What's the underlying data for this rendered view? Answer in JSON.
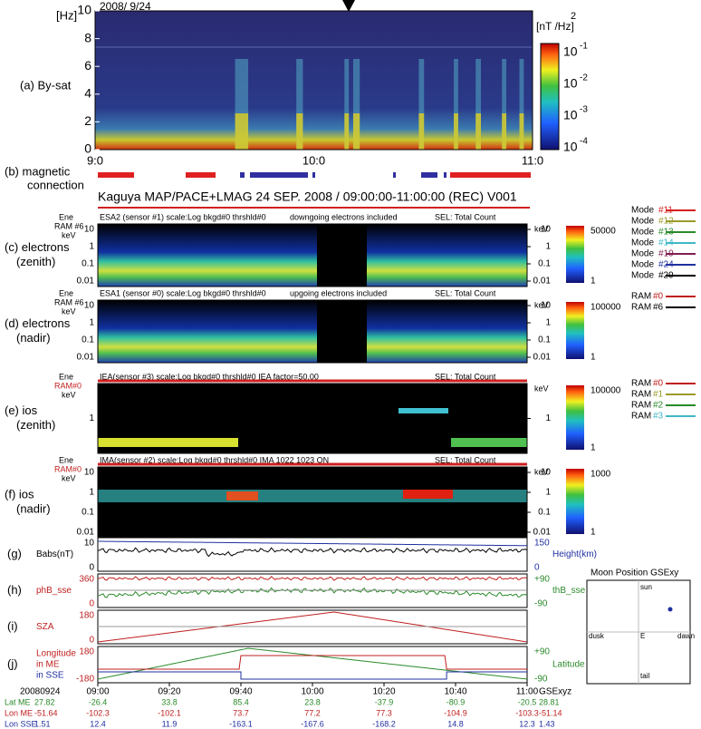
{
  "panel_a": {
    "unit": "[Hz]",
    "date": "2008/ 9/24",
    "label": "(a)  By-sat",
    "yticks": [
      "0",
      "2",
      "4",
      "6",
      "8",
      "10"
    ],
    "xticks": [
      "9:0",
      "10:0",
      "11:0"
    ],
    "cbar_unit": "[nT  /Hz]",
    "cbar_unit_sup": "2",
    "cbar_base": "10",
    "cbar_exp": [
      "-1",
      "-2",
      "-3",
      "-4"
    ]
  },
  "panel_b": {
    "label": "(b)  magnetic",
    "label2": "connection"
  },
  "title": "Kaguya  MAP/PACE+LMAG  24 SEP. 2008 / 09:00:00-11:00:00 (REC) V001",
  "spectra": [
    {
      "label": "(c) electrons",
      "sub": "(zenith)",
      "header": "ESA2 (sensor #1) scale:Log  bkgd#0  thrshld#0",
      "note": "downgoing electrons included",
      "sel": "SEL: Total Count",
      "ene": "Ene",
      "ram": "RAM #6",
      "kev": "keV",
      "ticks": [
        "10",
        "1",
        "0.1",
        "0.01"
      ],
      "cbar": [
        "50000",
        "1"
      ]
    },
    {
      "label": "(d) electrons",
      "sub": "(nadir)",
      "header": "ESA1 (sensor #0) scale:Log  bkgd#0  thrshld#0",
      "note": "upgoing electrons included",
      "sel": "SEL: Total Count",
      "ene": "Ene",
      "ram": "RAM #6",
      "kev": "keV",
      "ticks": [
        "10",
        "1",
        "0.1",
        "0.01"
      ],
      "cbar": [
        "100000",
        "1"
      ]
    },
    {
      "label": "(e) ios",
      "sub": "(zenith)",
      "header": "IEA(sensor #3) scale:Log  bkgd#0  thrshld#0  IEA factor=50.00",
      "note": "",
      "sel": "SEL: Total Count",
      "ene": "Ene",
      "ram": "RAM#0",
      "kev": "keV",
      "ticks": [
        "1"
      ],
      "cbar": [
        "100000",
        "1"
      ]
    },
    {
      "label": "(f) ios",
      "sub": "(nadir)",
      "header": "IMA(sensor #2) scale:Log  bkgd#0  thrshld#0  IMA 1022 1023 ON",
      "note": "",
      "sel": "SEL: Total Count",
      "ene": "Ene",
      "ram": "RAM#0",
      "kev": "keV",
      "ticks": [
        "10",
        "1",
        "0.1",
        "0.01"
      ],
      "cbar": [
        "1000",
        "1"
      ]
    }
  ],
  "lines": [
    {
      "label": "(g)",
      "left": [
        "Babs(nT)"
      ],
      "lticks": [
        "10",
        "0"
      ],
      "right": "Height(km)",
      "rticks": [
        "150",
        "0"
      ]
    },
    {
      "label": "(h)",
      "left": [
        "phB_sse"
      ],
      "lticks": [
        "360",
        "0"
      ],
      "right": "thB_sse",
      "rticks": [
        "+90",
        "-90"
      ]
    },
    {
      "label": "(i)",
      "left": [
        "SZA"
      ],
      "lticks": [
        "180",
        "0"
      ],
      "right": "",
      "rticks": []
    },
    {
      "label": "(j)",
      "left": [
        "Longitude",
        "in ME",
        "in SSE"
      ],
      "lticks": [
        "180",
        "-180"
      ],
      "right": "Latitude",
      "rticks": [
        "+90",
        "-90"
      ]
    }
  ],
  "modes": [
    {
      "name": "Mode",
      "id": "#11",
      "color": "#d62020"
    },
    {
      "name": "Mode",
      "id": "#12",
      "color": "#9a9a2a"
    },
    {
      "name": "Mode",
      "id": "#13",
      "color": "#2a8a2a"
    },
    {
      "name": "Mode",
      "id": "#14",
      "color": "#40b8c8"
    },
    {
      "name": "Mode",
      "id": "#19",
      "color": "#802050"
    },
    {
      "name": "Mode",
      "id": "#24",
      "color": "#2030a0"
    },
    {
      "name": "Mode",
      "id": "#29",
      "color": "#000000"
    }
  ],
  "ram_a": [
    {
      "name": "RAM",
      "id": "#0",
      "color": "#c02020"
    },
    {
      "name": "RAM",
      "id": "#6",
      "color": "#000000"
    }
  ],
  "ram_b": [
    {
      "name": "RAM",
      "id": "#0",
      "color": "#c02020"
    },
    {
      "name": "RAM",
      "id": "#1",
      "color": "#9a9a2a"
    },
    {
      "name": "RAM",
      "id": "#2",
      "color": "#2a8a2a"
    },
    {
      "name": "RAM",
      "id": "#3",
      "color": "#40b8c8"
    }
  ],
  "moon": {
    "title": "Moon Position GSExy",
    "sun": "sun",
    "dusk": "dusk",
    "center": "E",
    "dawn": "dawn",
    "tail": "tail"
  },
  "table": {
    "header": [
      "20080924",
      "09:00",
      "09:20",
      "09:40",
      "10:00",
      "10:20",
      "10:40",
      "11:00",
      "GSExyz"
    ],
    "rows": [
      [
        "Lat ME",
        "27.82",
        "-26.4",
        "33.8",
        "85.4",
        "23.8",
        "-37.9",
        "-80.9",
        "-20.5",
        "28.81"
      ],
      [
        "Lon ME",
        "-51.64",
        "-102.3",
        "-102.1",
        "73.7",
        "77.2",
        "77.3",
        "-104.9",
        "-103.3",
        "-51.14"
      ],
      [
        "Lon SSE",
        "1.51",
        "12.4",
        "11.9",
        "-163.1",
        "-167.6",
        "-168.2",
        "14.8",
        "12.3",
        "1.43"
      ]
    ]
  }
}
